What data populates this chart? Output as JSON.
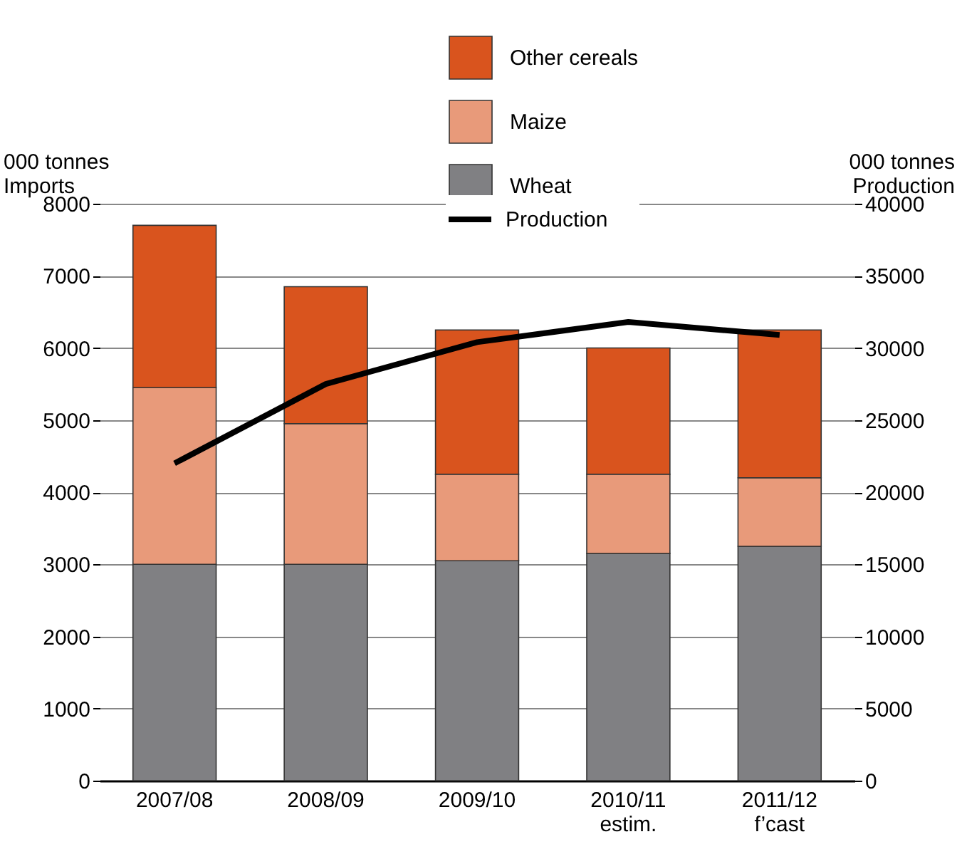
{
  "chart_data": {
    "type": "bar",
    "stacked": true,
    "categories": [
      "2007/08",
      "2008/09",
      "2009/10",
      "2010/11\nestim.",
      "2011/12\nf’cast"
    ],
    "ylabel": "000 tonnes\nImports",
    "y2label": "000 tonnes\nProduction",
    "ylim": [
      0,
      8000
    ],
    "yticks": [
      0,
      1000,
      2000,
      3000,
      4000,
      5000,
      6000,
      7000,
      8000
    ],
    "y2lim": [
      0,
      40000
    ],
    "y2ticks": [
      0,
      5000,
      10000,
      15000,
      20000,
      25000,
      30000,
      35000,
      40000
    ],
    "grid": "y",
    "legend": "top",
    "series": [
      {
        "name": "Wheat",
        "color": "#808083",
        "values": [
          3000,
          3000,
          3050,
          3150,
          3250
        ]
      },
      {
        "name": "Maize",
        "color": "#e89a7a",
        "values": [
          2450,
          1950,
          1200,
          1100,
          950
        ]
      },
      {
        "name": "Other cereals",
        "color": "#d9541e",
        "values": [
          2250,
          1900,
          2000,
          1750,
          2050
        ]
      },
      {
        "name": "Production",
        "type": "line",
        "axis": "y2",
        "color": "#000000",
        "values": [
          22000,
          27500,
          30400,
          31800,
          30900
        ]
      }
    ]
  }
}
